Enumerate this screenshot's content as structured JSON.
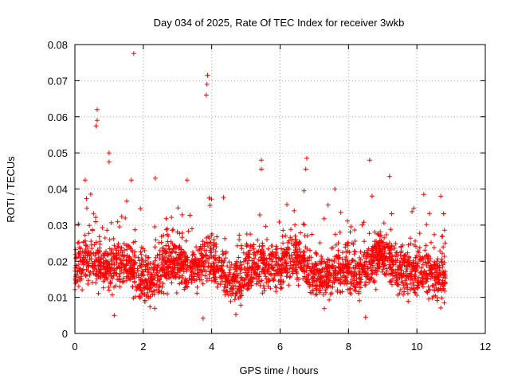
{
  "chart_data": {
    "type": "scatter",
    "title": "Day 034 of 2025, Rate Of TEC Index for receiver 3wkb",
    "xlabel": "GPS time / hours",
    "ylabel": "ROTI / TECUs",
    "xlim": [
      0,
      12
    ],
    "ylim": [
      0,
      0.08
    ],
    "x_ticks": [
      "0",
      "2",
      "4",
      "6",
      "8",
      "10",
      "12"
    ],
    "y_ticks": [
      "0",
      "0.01",
      "0.02",
      "0.03",
      "0.04",
      "0.05",
      "0.06",
      "0.07",
      "0.08"
    ],
    "grid": true,
    "marker": "plus",
    "color": "#ff0000",
    "data_extent_x": [
      0,
      10.85
    ],
    "typical_band": [
      0.008,
      0.028
    ],
    "series": [
      {
        "name": "ROTI",
        "notable_points": [
          {
            "x": 0.65,
            "y": 0.062
          },
          {
            "x": 0.65,
            "y": 0.059
          },
          {
            "x": 0.62,
            "y": 0.0575
          },
          {
            "x": 1.0,
            "y": 0.05
          },
          {
            "x": 1.0,
            "y": 0.0475
          },
          {
            "x": 1.72,
            "y": 0.0775
          },
          {
            "x": 3.88,
            "y": 0.0715
          },
          {
            "x": 3.86,
            "y": 0.069
          },
          {
            "x": 3.84,
            "y": 0.066
          },
          {
            "x": 0.3,
            "y": 0.0425
          },
          {
            "x": 3.28,
            "y": 0.0425
          },
          {
            "x": 5.45,
            "y": 0.048
          },
          {
            "x": 5.45,
            "y": 0.0455
          },
          {
            "x": 6.78,
            "y": 0.0485
          },
          {
            "x": 6.75,
            "y": 0.0455
          },
          {
            "x": 8.62,
            "y": 0.048
          },
          {
            "x": 9.2,
            "y": 0.0435
          },
          {
            "x": 1.65,
            "y": 0.0425
          },
          {
            "x": 2.35,
            "y": 0.043
          },
          {
            "x": 6.7,
            "y": 0.0395
          },
          {
            "x": 7.6,
            "y": 0.04
          },
          {
            "x": 10.7,
            "y": 0.038
          },
          {
            "x": 10.2,
            "y": 0.0385
          },
          {
            "x": 8.5,
            "y": 0.0045
          },
          {
            "x": 3.75,
            "y": 0.0042
          },
          {
            "x": 1.15,
            "y": 0.005
          },
          {
            "x": 10.8,
            "y": 0.0085
          }
        ]
      }
    ]
  }
}
